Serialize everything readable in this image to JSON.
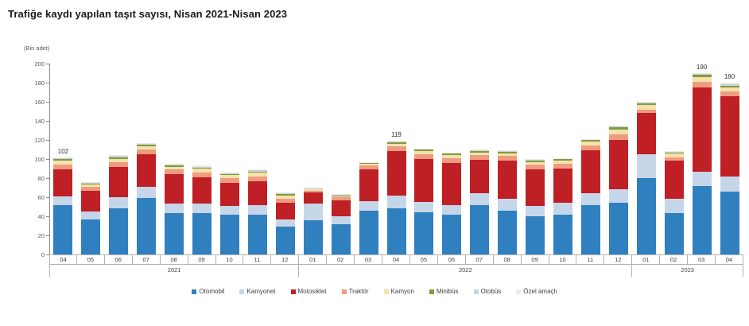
{
  "title": "Trafiğe kaydı yapılan taşıt sayısı, Nisan 2021-Nisan 2023",
  "chart_data": {
    "type": "bar",
    "stacked": true,
    "title": "Trafiğe kaydı yapılan taşıt sayısı, Nisan 2021-Nisan 2023",
    "ylabel": "(Bin adet)",
    "y_axis": {
      "min": 0,
      "max": 200,
      "step": 20
    },
    "grid": false,
    "legend_position": "bottom",
    "categories": [
      "04",
      "05",
      "06",
      "07",
      "08",
      "09",
      "10",
      "11",
      "12",
      "01",
      "02",
      "03",
      "04",
      "05",
      "06",
      "07",
      "08",
      "09",
      "10",
      "11",
      "12",
      "01",
      "02",
      "03",
      "04"
    ],
    "year_groups": [
      {
        "label": "2021",
        "span": 9
      },
      {
        "label": "2022",
        "span": 12
      },
      {
        "label": "2023",
        "span": 4
      }
    ],
    "series": [
      {
        "name": "Otomobil",
        "color": "#3080C0",
        "values": [
          52,
          37,
          48,
          59,
          43,
          43,
          42,
          42,
          29,
          36,
          32,
          46,
          48,
          44,
          42,
          52,
          46,
          40,
          42,
          52,
          54,
          80,
          43,
          72,
          66
        ]
      },
      {
        "name": "Kamyonet",
        "color": "#C5D6E9",
        "values": [
          9,
          8,
          12,
          12,
          10,
          10,
          9,
          10,
          8,
          17,
          8,
          10,
          14,
          11,
          10,
          12,
          12,
          11,
          12,
          12,
          14,
          25,
          15,
          15,
          16
        ]
      },
      {
        "name": "Motosiklet",
        "color": "#BE2026",
        "values": [
          28,
          22,
          32,
          34,
          31,
          28,
          24,
          25,
          17,
          12,
          17,
          33,
          46,
          45,
          44,
          35,
          40,
          38,
          36,
          45,
          52,
          43,
          40,
          88,
          84
        ]
      },
      {
        "name": "Traktör",
        "color": "#EF9B7F",
        "values": [
          5,
          4,
          5,
          5,
          5,
          5,
          5,
          5,
          4,
          2,
          3,
          4,
          5,
          5,
          5,
          5,
          5,
          5,
          5,
          5,
          6,
          4,
          4,
          6,
          5
        ]
      },
      {
        "name": "Kamyon",
        "color": "#F5E1AC",
        "values": [
          4,
          2,
          3,
          3,
          3,
          4,
          3,
          4,
          4,
          1,
          1,
          2,
          3,
          3,
          3,
          3,
          3,
          3,
          3,
          4,
          5,
          5,
          4,
          5,
          4
        ]
      },
      {
        "name": "Minibüs",
        "color": "#7E9D3C",
        "values": [
          2,
          1,
          2,
          2,
          1,
          1,
          1,
          1,
          1,
          1,
          1,
          1,
          2,
          2,
          2,
          2,
          2,
          2,
          2,
          2,
          2,
          2,
          1,
          2,
          2
        ]
      },
      {
        "name": "Otobüs",
        "color": "#C9D3DF",
        "values": [
          1,
          1,
          1,
          1,
          1,
          1,
          1,
          1,
          1,
          0.5,
          0.5,
          0.5,
          0.5,
          0.5,
          0.5,
          0.5,
          0.5,
          0.5,
          0.5,
          0.5,
          1,
          0.5,
          0.5,
          1,
          1.5
        ]
      },
      {
        "name": "Özel amaçlı",
        "color": "#EDE9E4",
        "values": [
          1,
          1,
          1,
          1,
          1,
          1,
          1,
          1,
          1,
          0.5,
          0.5,
          0.5,
          0.5,
          0.5,
          0.5,
          0.5,
          0.5,
          0.5,
          0.5,
          0.5,
          1,
          0.5,
          0.5,
          1,
          1.5
        ]
      }
    ],
    "bar_totals": [
      102,
      76,
      104,
      117,
      95,
      93,
      86,
      89,
      65,
      70,
      63,
      97,
      119,
      111,
      107,
      110,
      109,
      100,
      101,
      121,
      135,
      160,
      108,
      190,
      180
    ],
    "annotations": [
      {
        "index": 0,
        "text": "102"
      },
      {
        "index": 12,
        "text": "119"
      },
      {
        "index": 23,
        "text": "190"
      },
      {
        "index": 24,
        "text": "180"
      }
    ]
  }
}
